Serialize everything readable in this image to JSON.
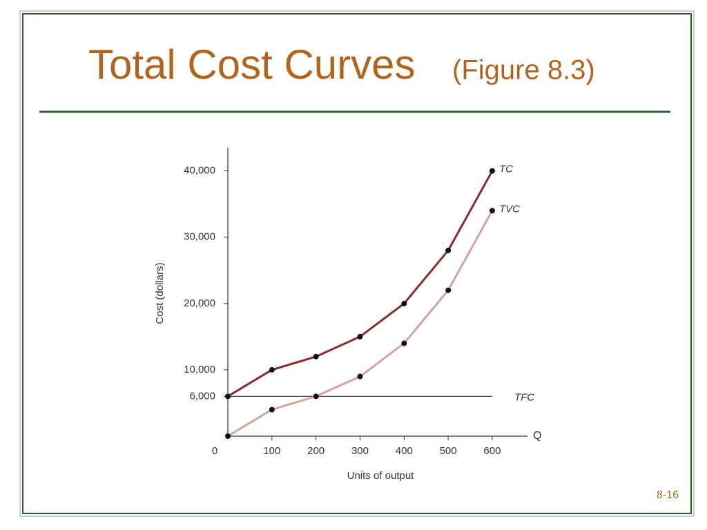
{
  "slide_title": "Total Cost Curves",
  "slide_subtitle": "(Figure 8.3)",
  "slide_number": "8-16",
  "chart_data": {
    "type": "line",
    "ylabel": "Cost (dollars)",
    "xlabel": "Units of output",
    "x_axis_end_label": "Q",
    "x": [
      0,
      100,
      200,
      300,
      400,
      500,
      600
    ],
    "series": [
      {
        "name": "TC",
        "color": "#8b2a2a",
        "values": [
          6000,
          10000,
          12000,
          15000,
          20000,
          28000,
          40000
        ],
        "markers": true
      },
      {
        "name": "TVC",
        "color": "#d6a39c",
        "values": [
          0,
          4000,
          6000,
          9000,
          14000,
          22000,
          34000
        ],
        "markers": true
      },
      {
        "name": "TFC",
        "color": "#444444",
        "values": [
          6000,
          6000,
          6000,
          6000,
          6000,
          6000,
          6000
        ],
        "markers": false
      }
    ],
    "xlim": [
      0,
      680
    ],
    "ylim": [
      0,
      43500
    ],
    "xticks": [
      0,
      100,
      200,
      300,
      400,
      500,
      600
    ],
    "yticks": [
      {
        "value": 6000,
        "label": "6,000"
      },
      {
        "value": 10000,
        "label": "10,000"
      },
      {
        "value": 20000,
        "label": "20,000"
      },
      {
        "value": 30000,
        "label": "30,000"
      },
      {
        "value": 40000,
        "label": "40,000"
      }
    ],
    "grid": false
  }
}
